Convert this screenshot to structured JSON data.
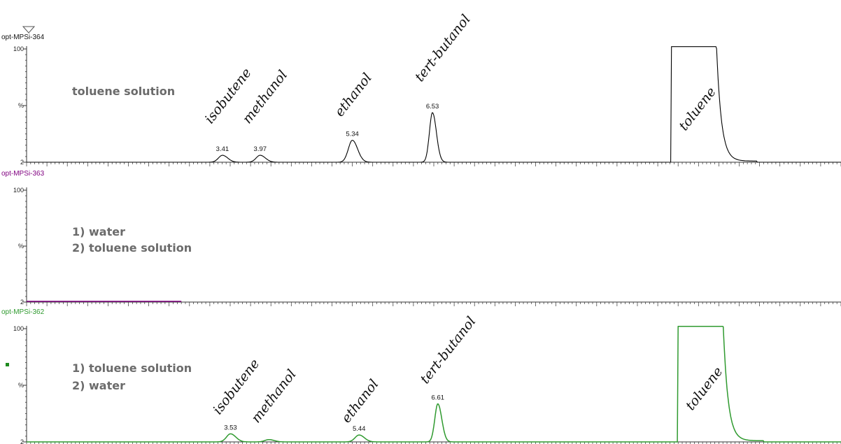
{
  "chart_data": [
    {
      "type": "line",
      "trace_id": "opt-MPSi-364",
      "color": "#000000",
      "y_ticks": [
        "100",
        "%",
        "2"
      ],
      "sample_lines": [
        "toluene solution"
      ],
      "xlim": [
        0.5,
        12.6
      ],
      "ylim": [
        2,
        100
      ],
      "peaks": [
        {
          "rt": 3.41,
          "height": 6,
          "label": "3.41",
          "name": "isobutene"
        },
        {
          "rt": 3.97,
          "height": 6,
          "label": "3.97",
          "name": "methanol"
        },
        {
          "rt": 5.34,
          "height": 19,
          "label": "5.34",
          "name": "ethanol"
        },
        {
          "rt": 6.53,
          "height": 43,
          "label": "6.53",
          "name": "tert-butanol"
        },
        {
          "rt": 10.1,
          "height": 100,
          "label": "",
          "name": "toluene"
        }
      ]
    },
    {
      "type": "line",
      "trace_id": "opt-MPSi-363",
      "color": "#800080",
      "y_ticks": [
        "100",
        "%",
        "2"
      ],
      "sample_lines": [
        "1) water",
        "2) toluene solution"
      ],
      "xlim": [
        0.5,
        12.6
      ],
      "ylim": [
        2,
        100
      ],
      "peaks": []
    },
    {
      "type": "line",
      "trace_id": "opt-MPSi-362",
      "color": "#2f9a2f",
      "y_ticks": [
        "100",
        "%",
        "2"
      ],
      "sample_lines": [
        "1) toluene solution",
        "2) water"
      ],
      "xlim": [
        0.5,
        12.6
      ],
      "ylim": [
        2,
        100
      ],
      "peaks": [
        {
          "rt": 3.53,
          "height": 7,
          "label": "3.53",
          "name": "isobutene"
        },
        {
          "rt": 4.1,
          "height": 2,
          "label": "",
          "name": "methanol"
        },
        {
          "rt": 5.44,
          "height": 6,
          "label": "5.44",
          "name": "ethanol"
        },
        {
          "rt": 6.61,
          "height": 33,
          "label": "6.61",
          "name": "tert-butanol"
        },
        {
          "rt": 10.2,
          "height": 100,
          "label": "",
          "name": "toluene"
        }
      ]
    }
  ]
}
